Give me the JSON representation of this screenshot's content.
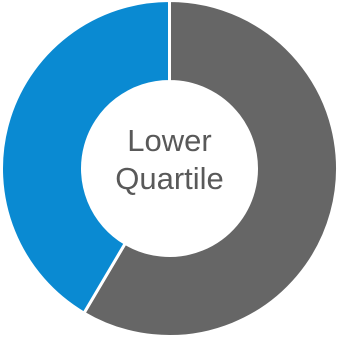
{
  "chart_data": {
    "type": "pie",
    "title": "",
    "center_label": [
      "Lower",
      "Quartile"
    ],
    "series": [
      {
        "value": 58.5,
        "color": "#666666"
      },
      {
        "value": 41.5,
        "color": "#0A8AD2"
      }
    ],
    "start_angle_deg": 0,
    "direction": "clockwise",
    "legend": "none",
    "slice_separator_color": "#ffffff"
  }
}
